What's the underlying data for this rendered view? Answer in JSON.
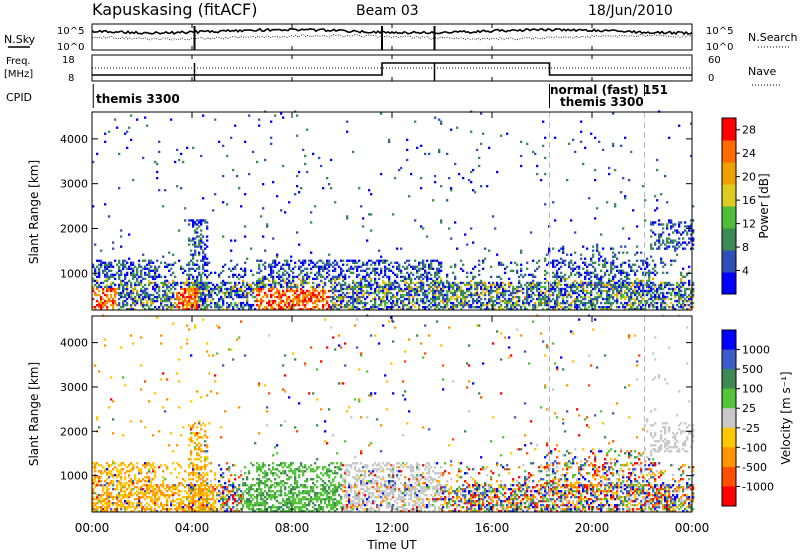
{
  "header": {
    "station": "Kapuskasing (fitACF)",
    "beam": "Beam 03",
    "date": "18/Jun/2010"
  },
  "summary_panel": {
    "left_label_top": "N.Sky",
    "left_label_freq_1": "Freq.",
    "left_label_freq_2": "[MHz]",
    "left_label_cpid": "CPID",
    "right_label_top": "N.Search",
    "right_label_nave": "Nave",
    "left_ticks_top": [
      "10^5",
      "10^0"
    ],
    "right_ticks_top": [
      "10^5",
      "10^0"
    ],
    "left_ticks_freq": [
      "18",
      "8"
    ],
    "right_ticks_nave": [
      "60",
      "0"
    ],
    "cpid_labels": [
      {
        "text": "themis 3300",
        "t": 0.05
      },
      {
        "text": "normal (fast) 151",
        "t": 18.3
      },
      {
        "text": "themis 3300",
        "t": 18.8
      }
    ]
  },
  "colors": {
    "power_scale": [
      "#0000ff",
      "#2f4fb8",
      "#3a8a55",
      "#4fbf3a",
      "#ddcc20",
      "#f0a000",
      "#ff6a00",
      "#ff0000"
    ],
    "velocity_scale": [
      "#0000ff",
      "#3d5cc9",
      "#3d8a55",
      "#55c43a",
      "#c8c8c8",
      "#ffc800",
      "#ff9600",
      "#ff5000",
      "#ff0000"
    ]
  },
  "chart_data": [
    {
      "type": "heatmap",
      "panel": "power",
      "ylabel": "Slant Range [km]",
      "ylim": [
        180,
        4600
      ],
      "y_ticks": [
        "1000",
        "2000",
        "3000",
        "4000"
      ],
      "xlim": [
        0,
        24
      ],
      "colorbar": {
        "label": "Power [dB]",
        "ticks": [
          "4",
          "8",
          "12",
          "16",
          "20",
          "24",
          "28"
        ],
        "range": [
          0,
          30
        ]
      }
    },
    {
      "type": "heatmap",
      "panel": "velocity",
      "ylabel": "Slant Range [km]",
      "ylim": [
        180,
        4600
      ],
      "y_ticks": [
        "1000",
        "2000",
        "3000",
        "4000"
      ],
      "xlim": [
        0,
        24
      ],
      "xlabel": "Time UT",
      "x_ticks": [
        "00:00",
        "04:00",
        "08:00",
        "12:00",
        "16:00",
        "20:00",
        "00:00"
      ],
      "colorbar": {
        "label": "Velocity [m s⁻¹]",
        "ticks": [
          "1000",
          "500",
          "100",
          "25",
          "-25",
          "-100",
          "-500",
          "-1000"
        ]
      }
    }
  ]
}
